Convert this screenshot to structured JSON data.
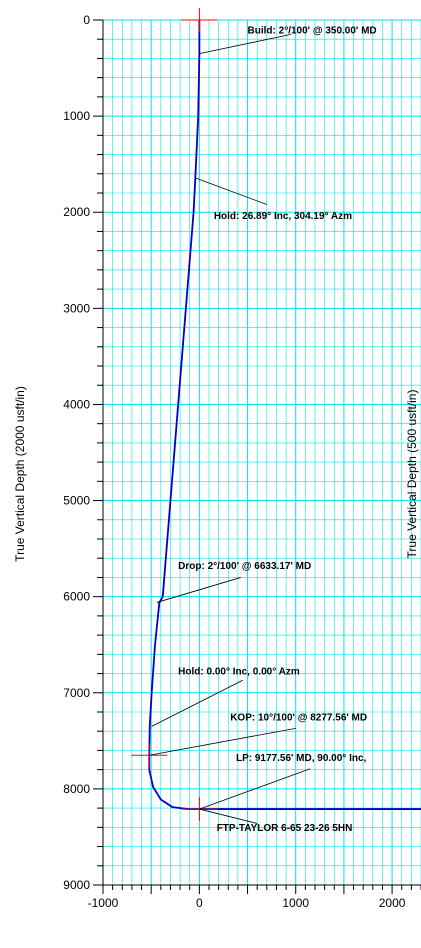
{
  "chart_data": {
    "type": "line",
    "ylabel": "True Vertical Depth (2000 usft/in)",
    "ylabel_secondary": "True Vertical Depth (500 usft/in)",
    "xlim": [
      -1000,
      2300
    ],
    "ylim": [
      9000,
      0
    ],
    "y_inverted": true,
    "grid": true,
    "x_ticks": [
      -1000,
      0,
      1000,
      2000
    ],
    "y_ticks": [
      0,
      1000,
      2000,
      3000,
      4000,
      5000,
      6000,
      7000,
      8000,
      9000
    ],
    "colors": {
      "wellpath": "#0000cc",
      "grid": "#00e5ee",
      "marker": "#ff0000",
      "axis": "#000000"
    },
    "series": [
      {
        "points": [
          [
            0,
            0
          ],
          [
            0,
            350
          ],
          [
            -12,
            1000
          ],
          [
            -42,
            1640
          ],
          [
            -60,
            2000
          ],
          [
            -100,
            2500
          ],
          [
            -140,
            3000
          ],
          [
            -180,
            3500
          ],
          [
            -220,
            4000
          ],
          [
            -260,
            4500
          ],
          [
            -300,
            5000
          ],
          [
            -340,
            5500
          ],
          [
            -380,
            6000
          ],
          [
            -415,
            6060
          ],
          [
            -460,
            6500
          ],
          [
            -495,
            7000
          ],
          [
            -515,
            7350
          ],
          [
            -520,
            7650
          ],
          [
            -520,
            7800
          ],
          [
            -480,
            7980
          ],
          [
            -400,
            8110
          ],
          [
            -280,
            8190
          ],
          [
            -120,
            8210
          ],
          [
            0,
            8210
          ],
          [
            2300,
            8210
          ]
        ]
      }
    ],
    "markers": [
      {
        "x": 0,
        "y": 0
      },
      {
        "x": -520,
        "y": 7650
      },
      {
        "x": 0,
        "y": 8210
      }
    ],
    "annotations": [
      {
        "text": "Build: 2°/100' @ 350.00' MD",
        "x": 0,
        "y": 350,
        "label_x": 500,
        "label_y": 140,
        "leader_x": 950,
        "leader_y": 150
      },
      {
        "text": "Hold: 26.89° Inc, 304.19° Azm",
        "x": -50,
        "y": 1640,
        "label_x": 150,
        "label_y": 2070,
        "leader_x": 700,
        "leader_y": 1920
      },
      {
        "text": "Drop: 2°/100' @ 6633.17' MD",
        "x": -440,
        "y": 6060,
        "label_x": -220,
        "label_y": 5710,
        "leader_x": 430,
        "leader_y": 5800
      },
      {
        "text": "Hold: 0.00° Inc, 0.00° Azm",
        "x": -495,
        "y": 7350,
        "label_x": -220,
        "label_y": 6810,
        "leader_x": 450,
        "leader_y": 6870
      },
      {
        "text": "KOP: 10°/100' @ 8277.56' MD",
        "x": -520,
        "y": 7650,
        "label_x": 320,
        "label_y": 7290,
        "leader_x": 1000,
        "leader_y": 7370
      },
      {
        "text": "LP:  9177.56' MD, 90.00° Inc,",
        "x": 0,
        "y": 8210,
        "label_x": 380,
        "label_y": 7710,
        "leader_x": 1150,
        "leader_y": 7790
      },
      {
        "text": "FTP-TAYLOR 6-65 23-26 5HN",
        "x": 0,
        "y": 8210,
        "label_x": 180,
        "label_y": 8440,
        "leader_x": 600,
        "leader_y": 8360
      }
    ]
  }
}
